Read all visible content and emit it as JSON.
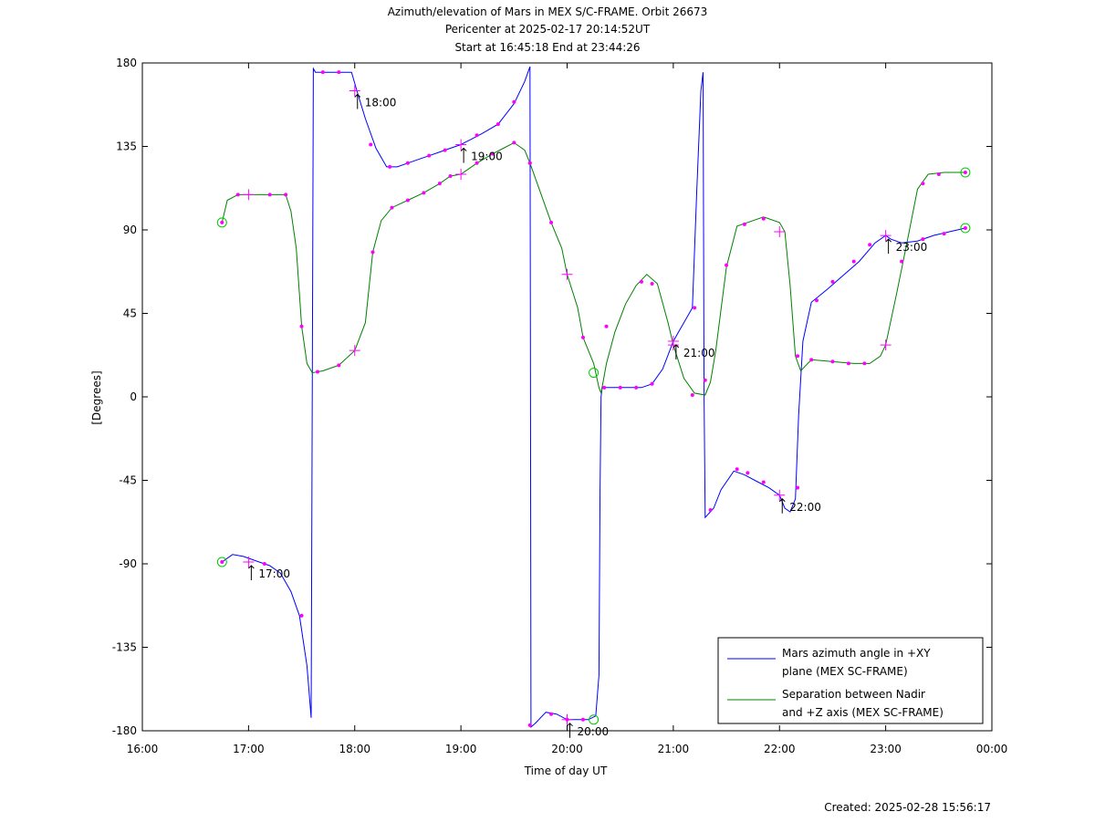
{
  "chart_data": {
    "type": "line",
    "title_lines": [
      "Azimuth/elevation of Mars in MEX S/C-FRAME.  Orbit 26673",
      "Pericenter at 2025-02-17 20:14:52UT",
      "Start at 16:45:18 End at 23:44:26"
    ],
    "xlabel": "Time of day UT",
    "ylabel": "[Degrees]",
    "x_unit": "hours of day",
    "xlim": [
      16,
      24
    ],
    "ylim": [
      -180,
      180
    ],
    "x_ticks": [
      16,
      17,
      18,
      19,
      20,
      21,
      22,
      23,
      24
    ],
    "x_tick_labels": [
      "16:00",
      "17:00",
      "18:00",
      "19:00",
      "20:00",
      "21:00",
      "22:00",
      "23:00",
      "00:00"
    ],
    "y_ticks": [
      180,
      135,
      90,
      45,
      0,
      -45,
      -90,
      -135,
      -180
    ],
    "y_tick_labels": [
      "180",
      "135",
      "90",
      "45",
      "0",
      "-45",
      "-90",
      "-135",
      "-180"
    ],
    "grid": false,
    "legend_position": "bottom-right",
    "series": [
      {
        "name": "Mars azimuth angle in +XY plane (MEX SC-FRAME)",
        "legend_lines": [
          "Mars azimuth angle in +XY",
          "plane (MEX SC-FRAME)"
        ],
        "color": "#0000ff",
        "points": [
          [
            16.75,
            -89
          ],
          [
            16.85,
            -85
          ],
          [
            16.95,
            -86
          ],
          [
            17.0,
            -87
          ],
          [
            17.1,
            -89
          ],
          [
            17.2,
            -91
          ],
          [
            17.3,
            -95
          ],
          [
            17.4,
            -105
          ],
          [
            17.48,
            -118
          ],
          [
            17.55,
            -145
          ],
          [
            17.59,
            -173
          ],
          [
            17.6,
            0
          ],
          [
            17.61,
            177
          ],
          [
            17.63,
            175
          ],
          [
            17.7,
            175
          ],
          [
            17.85,
            175
          ],
          [
            17.97,
            175
          ],
          [
            18.02,
            165
          ],
          [
            18.1,
            150
          ],
          [
            18.2,
            134
          ],
          [
            18.3,
            124
          ],
          [
            18.4,
            124
          ],
          [
            18.5,
            126
          ],
          [
            18.6,
            128
          ],
          [
            18.7,
            130
          ],
          [
            18.8,
            132
          ],
          [
            18.9,
            134
          ],
          [
            19.0,
            136
          ],
          [
            19.1,
            139
          ],
          [
            19.2,
            142
          ],
          [
            19.35,
            147
          ],
          [
            19.5,
            158
          ],
          [
            19.6,
            170
          ],
          [
            19.65,
            178
          ],
          [
            19.655,
            0
          ],
          [
            19.66,
            -178
          ],
          [
            19.7,
            -176
          ],
          [
            19.8,
            -170
          ],
          [
            19.9,
            -171
          ],
          [
            20.0,
            -174
          ],
          [
            20.1,
            -174
          ],
          [
            20.2,
            -174
          ],
          [
            20.27,
            -172
          ],
          [
            20.3,
            -150
          ],
          [
            20.31,
            -50
          ],
          [
            20.32,
            0
          ],
          [
            20.33,
            5
          ],
          [
            20.4,
            5
          ],
          [
            20.5,
            5
          ],
          [
            20.6,
            5
          ],
          [
            20.7,
            5
          ],
          [
            20.8,
            7
          ],
          [
            20.9,
            15
          ],
          [
            21.0,
            30
          ],
          [
            21.05,
            35
          ],
          [
            21.18,
            48
          ],
          [
            21.22,
            110
          ],
          [
            21.26,
            165
          ],
          [
            21.28,
            175
          ],
          [
            21.29,
            0
          ],
          [
            21.3,
            -65
          ],
          [
            21.38,
            -60
          ],
          [
            21.45,
            -50
          ],
          [
            21.57,
            -40
          ],
          [
            21.67,
            -42
          ],
          [
            21.8,
            -46
          ],
          [
            21.9,
            -49
          ],
          [
            22.0,
            -53
          ],
          [
            22.05,
            -60
          ],
          [
            22.1,
            -62
          ],
          [
            22.15,
            -55
          ],
          [
            22.18,
            -10
          ],
          [
            22.22,
            30
          ],
          [
            22.3,
            51
          ],
          [
            22.45,
            58
          ],
          [
            22.55,
            63
          ],
          [
            22.75,
            73
          ],
          [
            22.9,
            83
          ],
          [
            23.0,
            87
          ],
          [
            23.05,
            85
          ],
          [
            23.15,
            83
          ],
          [
            23.3,
            84
          ],
          [
            23.45,
            87
          ],
          [
            23.6,
            89
          ],
          [
            23.75,
            91
          ]
        ]
      },
      {
        "name": "Separation between Nadir and +Z axis (MEX SC-FRAME)",
        "legend_lines": [
          "Separation between Nadir",
          "and +Z axis (MEX SC-FRAME)"
        ],
        "color": "#008000",
        "points": [
          [
            16.75,
            94
          ],
          [
            16.8,
            106
          ],
          [
            16.9,
            109
          ],
          [
            17.0,
            109
          ],
          [
            17.2,
            109
          ],
          [
            17.35,
            109
          ],
          [
            17.4,
            100
          ],
          [
            17.45,
            80
          ],
          [
            17.5,
            38
          ],
          [
            17.55,
            18
          ],
          [
            17.6,
            13
          ],
          [
            17.7,
            14
          ],
          [
            17.85,
            17
          ],
          [
            18.0,
            25
          ],
          [
            18.1,
            40
          ],
          [
            18.17,
            78
          ],
          [
            18.25,
            95
          ],
          [
            18.35,
            102
          ],
          [
            18.5,
            106
          ],
          [
            18.65,
            110
          ],
          [
            18.8,
            115
          ],
          [
            18.9,
            119
          ],
          [
            19.0,
            120
          ],
          [
            19.15,
            126
          ],
          [
            19.3,
            131
          ],
          [
            19.4,
            134
          ],
          [
            19.5,
            137
          ],
          [
            19.6,
            133
          ],
          [
            19.65,
            126
          ],
          [
            19.75,
            110
          ],
          [
            19.85,
            94
          ],
          [
            19.95,
            80
          ],
          [
            20.0,
            66
          ],
          [
            20.1,
            48
          ],
          [
            20.15,
            32
          ],
          [
            20.25,
            18
          ],
          [
            20.3,
            5
          ],
          [
            20.32,
            2
          ],
          [
            20.37,
            18
          ],
          [
            20.45,
            35
          ],
          [
            20.55,
            50
          ],
          [
            20.65,
            60
          ],
          [
            20.75,
            66
          ],
          [
            20.85,
            61
          ],
          [
            20.95,
            40
          ],
          [
            21.0,
            28
          ],
          [
            21.1,
            10
          ],
          [
            21.2,
            2
          ],
          [
            21.3,
            1
          ],
          [
            21.35,
            8
          ],
          [
            21.4,
            25
          ],
          [
            21.5,
            70
          ],
          [
            21.6,
            92
          ],
          [
            21.75,
            95
          ],
          [
            21.85,
            97
          ],
          [
            22.0,
            94
          ],
          [
            22.05,
            89
          ],
          [
            22.1,
            60
          ],
          [
            22.15,
            22
          ],
          [
            22.2,
            14
          ],
          [
            22.3,
            20
          ],
          [
            22.5,
            19
          ],
          [
            22.7,
            18
          ],
          [
            22.85,
            18
          ],
          [
            22.95,
            22
          ],
          [
            23.0,
            28
          ],
          [
            23.1,
            55
          ],
          [
            23.2,
            83
          ],
          [
            23.3,
            112
          ],
          [
            23.4,
            120
          ],
          [
            23.55,
            121
          ],
          [
            23.75,
            121
          ]
        ]
      }
    ],
    "timestamp_labels": [
      {
        "text": "17:00",
        "x": 17.0,
        "y": -89
      },
      {
        "text": "18:00",
        "x": 18.0,
        "y": 165
      },
      {
        "text": "19:00",
        "x": 19.0,
        "y": 136
      },
      {
        "text": "20:00",
        "x": 20.0,
        "y": -174
      },
      {
        "text": "21:00",
        "x": 21.0,
        "y": 30
      },
      {
        "text": "22:00",
        "x": 22.0,
        "y": -53
      },
      {
        "text": "23:00",
        "x": 23.0,
        "y": 87
      }
    ],
    "hour_markers": [
      [
        17.0,
        -89
      ],
      [
        18.0,
        165
      ],
      [
        19.0,
        136
      ],
      [
        20.0,
        -174
      ],
      [
        21.0,
        30
      ],
      [
        22.0,
        -53
      ],
      [
        23.0,
        87
      ],
      [
        17.0,
        109
      ],
      [
        18.0,
        25
      ],
      [
        19.0,
        120
      ],
      [
        20.0,
        66
      ],
      [
        21.0,
        28
      ],
      [
        22.0,
        89
      ],
      [
        23.0,
        28
      ]
    ],
    "circle_markers": [
      [
        16.75,
        -89
      ],
      [
        16.75,
        94
      ],
      [
        20.25,
        -174
      ],
      [
        20.25,
        13
      ],
      [
        23.75,
        91
      ],
      [
        23.75,
        121
      ]
    ],
    "dot_markers": [
      [
        16.75,
        94
      ],
      [
        16.9,
        109
      ],
      [
        17.2,
        109
      ],
      [
        17.35,
        109
      ],
      [
        17.5,
        38
      ],
      [
        17.65,
        13.5
      ],
      [
        17.85,
        17
      ],
      [
        18.17,
        78
      ],
      [
        18.35,
        102
      ],
      [
        18.5,
        106
      ],
      [
        18.65,
        110
      ],
      [
        18.8,
        115
      ],
      [
        18.9,
        119
      ],
      [
        19.15,
        126
      ],
      [
        19.3,
        131
      ],
      [
        19.5,
        137
      ],
      [
        19.65,
        126
      ],
      [
        19.85,
        94
      ],
      [
        20.15,
        32
      ],
      [
        20.37,
        38
      ],
      [
        20.7,
        62
      ],
      [
        20.8,
        61
      ],
      [
        21.18,
        1
      ],
      [
        21.3,
        9
      ],
      [
        21.5,
        71
      ],
      [
        21.67,
        93
      ],
      [
        21.85,
        96
      ],
      [
        22.17,
        22
      ],
      [
        22.3,
        20
      ],
      [
        22.5,
        19
      ],
      [
        22.65,
        18
      ],
      [
        22.8,
        18
      ],
      [
        23.15,
        73
      ],
      [
        23.35,
        115
      ],
      [
        23.5,
        120
      ],
      [
        23.75,
        121
      ],
      [
        16.75,
        -89
      ],
      [
        17.15,
        -90
      ],
      [
        17.5,
        -118
      ],
      [
        17.7,
        175
      ],
      [
        17.85,
        175
      ],
      [
        18.15,
        136
      ],
      [
        18.33,
        124
      ],
      [
        18.5,
        126
      ],
      [
        18.7,
        130
      ],
      [
        18.85,
        133
      ],
      [
        19.15,
        141
      ],
      [
        19.35,
        147
      ],
      [
        19.5,
        159
      ],
      [
        19.65,
        126
      ],
      [
        19.65,
        -177
      ],
      [
        19.85,
        -171
      ],
      [
        20.0,
        -174
      ],
      [
        20.15,
        -174
      ],
      [
        20.35,
        5
      ],
      [
        20.5,
        5
      ],
      [
        20.65,
        5
      ],
      [
        20.8,
        7
      ],
      [
        21.2,
        48
      ],
      [
        21.35,
        -61
      ],
      [
        21.6,
        -39
      ],
      [
        21.7,
        -41
      ],
      [
        21.85,
        -46
      ],
      [
        22.17,
        -49
      ],
      [
        22.35,
        52
      ],
      [
        22.5,
        62
      ],
      [
        22.7,
        73
      ],
      [
        22.85,
        82
      ],
      [
        23.35,
        85
      ],
      [
        23.55,
        88
      ],
      [
        23.75,
        91
      ]
    ],
    "footer_text": "Created: 2025-02-28 15:56:17"
  }
}
